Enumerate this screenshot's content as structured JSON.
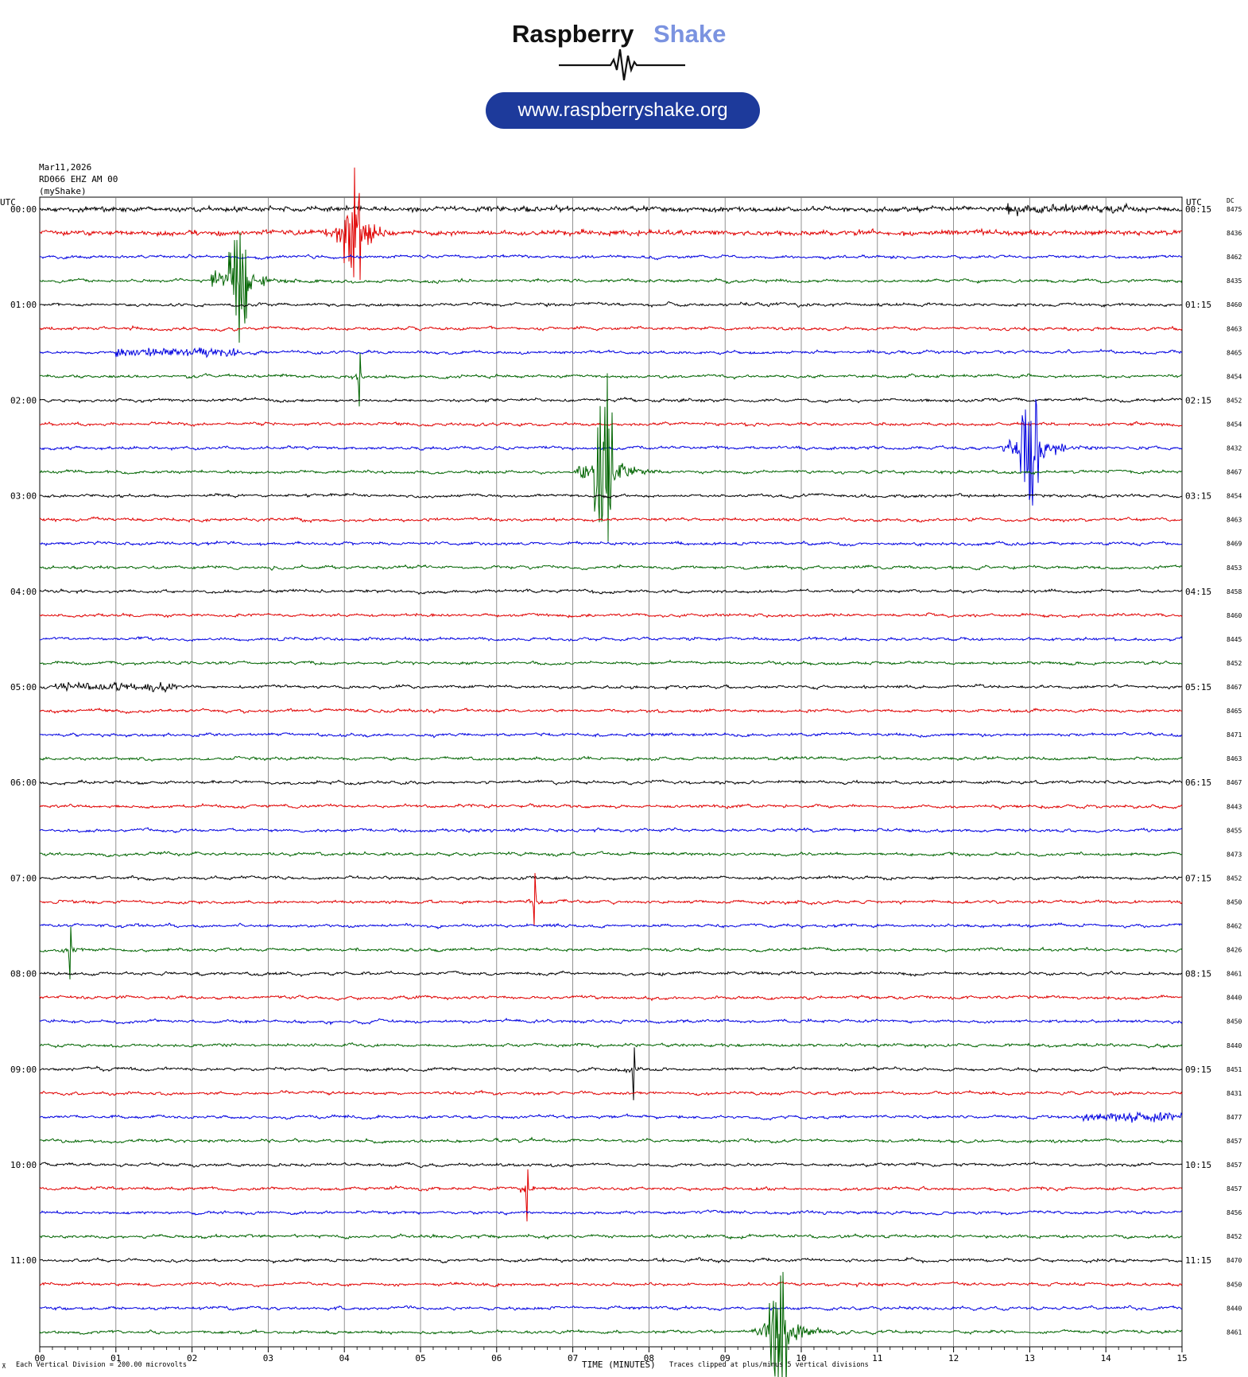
{
  "logo": {
    "brand_dark": "Raspberry",
    "brand_light": "Shake",
    "url": "www.raspberryshake.org",
    "brand_dark_color": "#111111",
    "brand_light_color": "#7b93e0",
    "pill_color": "#1d3a9b"
  },
  "header": {
    "date": "Mar11,2026",
    "station": "RD066 EHZ AM 00",
    "owner": "(myShake)",
    "left_utc": "UTC",
    "right_utc": "UTC",
    "dc": "DC"
  },
  "footer": {
    "scale": "Each Vertical Division =  200.00 microvolts",
    "xlabel": "TIME (MINUTES)",
    "clip_note": "Traces clipped at plus/minus 5 vertical divisions"
  },
  "chart_data": {
    "type": "line",
    "xlabel": "TIME (MINUTES)",
    "xlim": [
      0,
      15
    ],
    "x_ticks": [
      "00",
      "01",
      "02",
      "03",
      "04",
      "05",
      "06",
      "07",
      "08",
      "09",
      "10",
      "11",
      "12",
      "13",
      "14",
      "15"
    ],
    "colors": [
      "#000000",
      "#e00000",
      "#0000e0",
      "#006400"
    ],
    "trace_count": 48,
    "left_labels": [
      "00:00",
      "01:00",
      "02:00",
      "03:00",
      "04:00",
      "05:00",
      "06:00",
      "07:00",
      "08:00",
      "09:00",
      "10:00",
      "11:00"
    ],
    "right_labels": [
      "00:15",
      "01:15",
      "02:15",
      "03:15",
      "04:15",
      "05:15",
      "06:15",
      "07:15",
      "08:15",
      "09:15",
      "10:15",
      "11:15"
    ],
    "dc_offsets": [
      8475,
      8436,
      8462,
      8435,
      8460,
      8463,
      8465,
      8454,
      8452,
      8454,
      8432,
      8467,
      8454,
      8463,
      8469,
      8453,
      8458,
      8460,
      8445,
      8452,
      8467,
      8465,
      8471,
      8463,
      8467,
      8443,
      8455,
      8473,
      8452,
      8450,
      8462,
      8426,
      8461,
      8440,
      8450,
      8440,
      8451,
      8431,
      8477,
      8457,
      8457,
      8457,
      8456,
      8452,
      8470,
      8450,
      8440,
      8461
    ],
    "events": [
      {
        "trace": 0,
        "minute": 13.5,
        "type": "noise"
      },
      {
        "trace": 1,
        "minute": 4.1,
        "type": "quake"
      },
      {
        "trace": 3,
        "minute": 2.6,
        "type": "quake"
      },
      {
        "trace": 6,
        "minute": 1.8,
        "type": "noise"
      },
      {
        "trace": 7,
        "minute": 4.2,
        "type": "spike"
      },
      {
        "trace": 10,
        "minute": 13.0,
        "type": "quake"
      },
      {
        "trace": 11,
        "minute": 7.4,
        "type": "quake"
      },
      {
        "trace": 20,
        "minute": 1.0,
        "type": "noise"
      },
      {
        "trace": 29,
        "minute": 6.5,
        "type": "spike"
      },
      {
        "trace": 31,
        "minute": 0.4,
        "type": "spike"
      },
      {
        "trace": 36,
        "minute": 7.8,
        "type": "spike"
      },
      {
        "trace": 38,
        "minute": 14.5,
        "type": "noise"
      },
      {
        "trace": 41,
        "minute": 6.4,
        "type": "spike"
      },
      {
        "trace": 47,
        "minute": 9.7,
        "type": "quake"
      }
    ]
  }
}
